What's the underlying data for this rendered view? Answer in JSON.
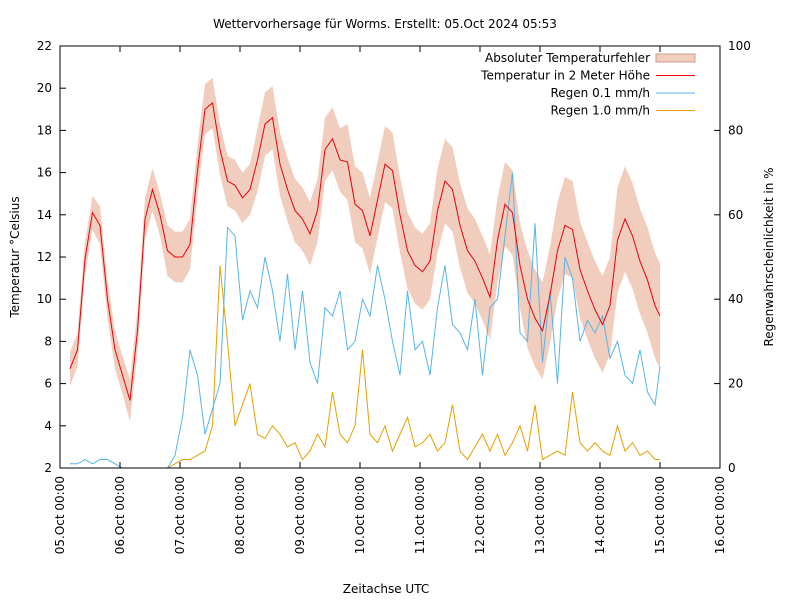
{
  "chart_data": {
    "type": "line",
    "title": "Wettervorhersage für Worms. Erstellt: 05.Oct 2024 05:53",
    "x_label": "Zeitachse UTC",
    "y_label": "Temperatur °Celsius",
    "y2_label": "Regenwahrscheinlichkeit in %",
    "x": [
      4,
      7,
      10,
      13,
      16,
      19,
      22,
      25,
      28,
      31,
      34,
      37,
      40,
      43,
      46,
      49,
      52,
      55,
      58,
      61,
      64,
      67,
      70,
      73,
      76,
      79,
      82,
      85,
      88,
      91,
      94,
      97,
      100,
      103,
      106,
      109,
      112,
      115,
      118,
      121,
      124,
      127,
      130,
      133,
      136,
      139,
      142,
      145,
      148,
      151,
      154,
      157,
      160,
      163,
      166,
      169,
      172,
      175,
      178,
      181,
      184,
      187,
      190,
      193,
      196,
      199,
      202,
      205,
      208,
      211,
      214,
      217,
      220,
      223,
      226,
      229,
      232,
      235,
      238,
      240
    ],
    "xlim": [
      0,
      264
    ],
    "xticks": [
      {
        "value": 0,
        "label": "05.Oct 00:00"
      },
      {
        "value": 24,
        "label": "06.Oct 00:00"
      },
      {
        "value": 48,
        "label": "07.Oct 00:00"
      },
      {
        "value": 72,
        "label": "08.Oct 00:00"
      },
      {
        "value": 96,
        "label": "09.Oct 00:00"
      },
      {
        "value": 120,
        "label": "10.Oct 00:00"
      },
      {
        "value": 144,
        "label": "11.Oct 00:00"
      },
      {
        "value": 168,
        "label": "12.Oct 00:00"
      },
      {
        "value": 192,
        "label": "13.Oct 00:00"
      },
      {
        "value": 216,
        "label": "14.Oct 00:00"
      },
      {
        "value": 240,
        "label": "15.Oct 00:00"
      },
      {
        "value": 264,
        "label": "16.Oct 00:00"
      }
    ],
    "ylim": [
      2,
      22
    ],
    "yticks": [
      2,
      4,
      6,
      8,
      10,
      12,
      14,
      16,
      18,
      20,
      22
    ],
    "y2lim": [
      0,
      100
    ],
    "y2ticks": [
      0,
      20,
      40,
      60,
      80,
      100
    ],
    "legend": "top-right",
    "series": [
      {
        "name": "Absoluter Temperaturfehler",
        "type": "band",
        "of": 1,
        "color": "#f1cdbd",
        "values": [
          0.8,
          0.8,
          0.8,
          0.8,
          0.9,
          0.9,
          0.9,
          0.9,
          1,
          1,
          1,
          1,
          1,
          1.2,
          1.2,
          1.2,
          1.2,
          1.2,
          1.2,
          1.2,
          1.2,
          1.2,
          1.2,
          1.2,
          1.2,
          1.5,
          1.5,
          1.5,
          1.5,
          1.5,
          1.5,
          1.5,
          1.5,
          1.5,
          1.5,
          1.5,
          1.5,
          1.8,
          1.8,
          1.8,
          1.8,
          1.8,
          1.8,
          1.8,
          1.8,
          1.8,
          1.8,
          1.8,
          1.8,
          2,
          2,
          2,
          2,
          2,
          2,
          2,
          2,
          2,
          2,
          2,
          2,
          2.3,
          2.3,
          2.3,
          2.3,
          2.3,
          2.3,
          2.3,
          2.3,
          2.3,
          2.3,
          2.3,
          2.3,
          2.5,
          2.5,
          2.5,
          2.5,
          2.5,
          2.5,
          2.5
        ]
      },
      {
        "name": "Temperatur in 2 Meter Höhe",
        "type": "line",
        "color": "#e8000b",
        "values": [
          6.7,
          7.6,
          11.9,
          14.1,
          13.5,
          10,
          7.6,
          6.4,
          5.2,
          8.5,
          13.8,
          15.2,
          14,
          12.3,
          12,
          12,
          12.6,
          16.1,
          19,
          19.3,
          17.1,
          15.6,
          15.4,
          14.8,
          15.2,
          16.6,
          18.3,
          18.6,
          16.4,
          15.2,
          14.2,
          13.8,
          13.1,
          14.2,
          17.1,
          17.6,
          16.6,
          16.5,
          14.5,
          14.2,
          13,
          14.7,
          16.4,
          16.1,
          14,
          12.3,
          11.6,
          11.3,
          11.8,
          14.2,
          15.6,
          15.2,
          13.5,
          12.3,
          11.8,
          11,
          10.1,
          12.8,
          14.5,
          14.1,
          11.6,
          10,
          9.1,
          8.5,
          10.2,
          12.3,
          13.5,
          13.3,
          11.4,
          10.4,
          9.5,
          8.8,
          9.7,
          12.8,
          13.8,
          13,
          11.8,
          10.9,
          9.7,
          9.2
        ]
      },
      {
        "name": "Regen 0.1 mm/h",
        "type": "line",
        "axis": "y2",
        "color": "#56b4e9",
        "values": [
          1,
          1,
          2,
          1,
          2,
          2,
          1,
          0,
          0,
          0,
          0,
          0,
          0,
          0,
          3,
          12,
          28,
          22,
          8,
          14,
          20,
          57,
          55,
          35,
          42,
          38,
          50,
          42,
          30,
          46,
          28,
          42,
          25,
          20,
          38,
          36,
          42,
          28,
          30,
          40,
          36,
          48,
          40,
          30,
          22,
          42,
          28,
          30,
          22,
          38,
          48,
          34,
          32,
          28,
          40,
          22,
          38,
          40,
          55,
          70,
          32,
          30,
          58,
          25,
          42,
          20,
          50,
          45,
          30,
          35,
          32,
          36,
          26,
          30,
          22,
          20,
          28,
          18,
          15,
          24
        ]
      },
      {
        "name": "Regen 1.0 mm/h",
        "type": "line",
        "axis": "y2",
        "color": "#e69f00",
        "values": [
          0,
          0,
          0,
          0,
          0,
          0,
          0,
          0,
          0,
          0,
          0,
          0,
          0,
          0,
          1,
          2,
          2,
          3,
          4,
          10,
          48,
          30,
          10,
          15,
          20,
          8,
          7,
          10,
          8,
          5,
          6,
          2,
          4,
          8,
          5,
          18,
          8,
          6,
          10,
          28,
          8,
          6,
          10,
          4,
          8,
          12,
          5,
          6,
          8,
          4,
          6,
          15,
          4,
          2,
          5,
          8,
          4,
          8,
          3,
          6,
          10,
          4,
          15,
          2,
          3,
          4,
          3,
          18,
          6,
          4,
          6,
          4,
          3,
          10,
          4,
          6,
          3,
          4,
          2,
          2
        ]
      }
    ]
  }
}
